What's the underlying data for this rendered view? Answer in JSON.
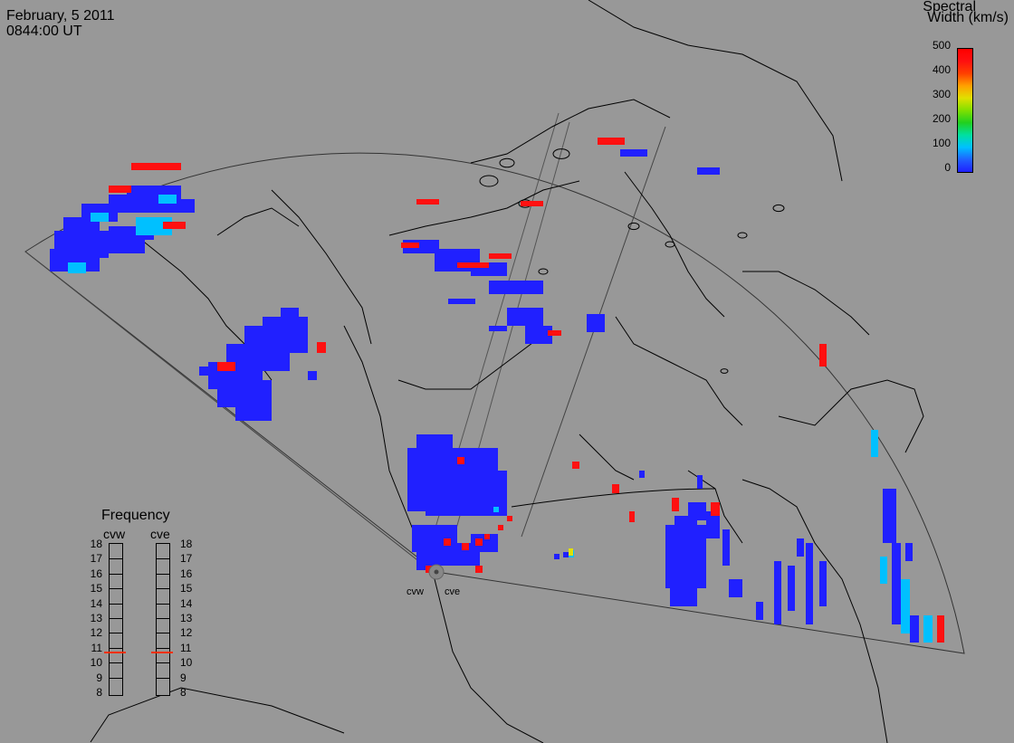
{
  "header": {
    "date": "February, 5 2011",
    "time": "0844:00 UT"
  },
  "colorbar": {
    "title_line1": "Spectral",
    "title_line2": "Width (km/s)",
    "ticks": [
      "500",
      "400",
      "300",
      "200",
      "100",
      "0"
    ],
    "range": [
      0,
      500
    ]
  },
  "frequency": {
    "title": "Frequency",
    "radars": [
      {
        "name": "cvw",
        "value": 10.7
      },
      {
        "name": "cve",
        "value": 10.7
      }
    ],
    "labels": [
      "18",
      "17",
      "16",
      "15",
      "14",
      "13",
      "12",
      "11",
      "10",
      "9",
      "8"
    ]
  },
  "radars": {
    "west": "cvw",
    "east": "cve"
  },
  "colors": {
    "background": "#989898",
    "low": "#2020ff",
    "mid": "#00c0ff",
    "high": "#ff1010",
    "marker": "#ff3000",
    "coast": "#000000"
  }
}
